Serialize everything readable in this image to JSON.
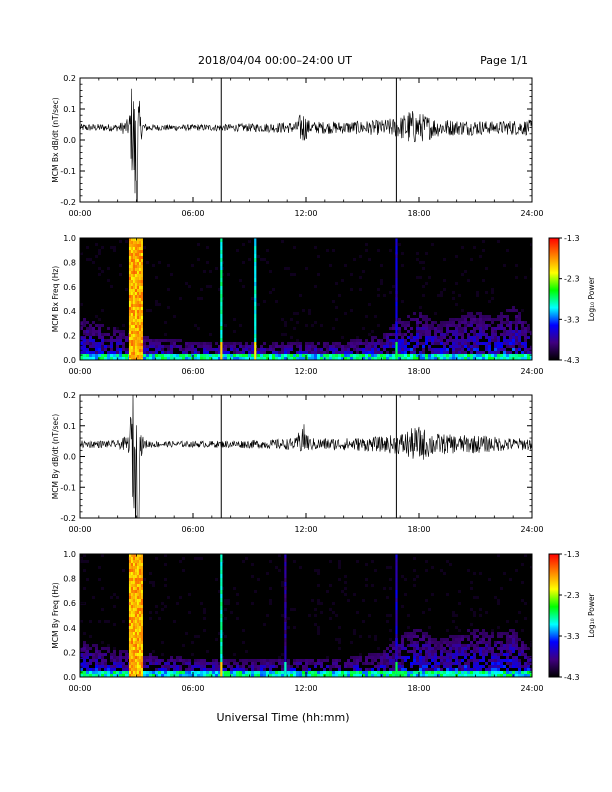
{
  "header": {
    "title": "2018/04/04  00:00–24:00 UT",
    "page": "Page 1/1"
  },
  "xaxis": {
    "label": "Universal Time (hh:mm)",
    "ticks": [
      "00:00",
      "06:00",
      "12:00",
      "18:00",
      "24:00"
    ],
    "range_hours": [
      0,
      24
    ]
  },
  "colorbar": {
    "label": "Log₁₀ Power",
    "ticks": [
      "-1.3",
      "-2.3",
      "-3.3",
      "-4.3"
    ],
    "range": [
      -4.3,
      -1.3
    ],
    "colormap": "rainbow",
    "colors": [
      "#000000",
      "#400080",
      "#0000ff",
      "#00ffff",
      "#00ff00",
      "#ffff00",
      "#ff8000",
      "#ff0000"
    ]
  },
  "chart_data": [
    {
      "type": "line",
      "ylabel": "MCM Bx dB/dt (nT/sec)",
      "ylim": [
        -0.2,
        0.2
      ],
      "yticks": [
        "0.2",
        "0.1",
        "0.0",
        "-0.1",
        "-0.2"
      ],
      "xlim": [
        0,
        24
      ],
      "vertical_markers_hours": [
        7.5,
        16.8
      ],
      "series": [
        {
          "x": [
            0,
            2,
            2.6,
            2.8,
            2.9,
            3.0,
            3.1,
            3.2,
            3.4,
            4,
            6,
            8,
            10,
            11.5,
            11.8,
            12.2,
            14,
            16,
            17,
            17.5,
            18,
            18.5,
            19,
            20,
            21,
            22,
            23,
            24
          ],
          "y_center": [
            0.04,
            0.04,
            0.04,
            0.04,
            -0.05,
            -0.1,
            -0.02,
            0.04,
            0.04,
            0.04,
            0.04,
            0.04,
            0.04,
            0.04,
            0.04,
            0.04,
            0.04,
            0.04,
            0.04,
            0.04,
            0.04,
            0.04,
            0.04,
            0.04,
            0.04,
            0.04,
            0.04,
            0.04
          ],
          "y_amplitude": [
            0.012,
            0.012,
            0.03,
            0.2,
            0.2,
            0.25,
            0.2,
            0.05,
            0.015,
            0.01,
            0.01,
            0.012,
            0.015,
            0.02,
            0.06,
            0.02,
            0.02,
            0.025,
            0.035,
            0.06,
            0.05,
            0.04,
            0.03,
            0.025,
            0.025,
            0.02,
            0.025,
            0.025
          ]
        }
      ]
    },
    {
      "type": "heatmap",
      "ylabel": "MCM Bx Freq (Hz)",
      "ylim": [
        0,
        1
      ],
      "yticks": [
        "1.0",
        "0.8",
        "0.6",
        "0.4",
        "0.2",
        "0.0"
      ],
      "xlim": [
        0,
        24
      ],
      "units": "Log10 Power",
      "broadband_bands": [
        {
          "x_start": 2.6,
          "x_end": 3.3,
          "log_power": -1.9
        }
      ],
      "spikes": [
        {
          "x": 7.5,
          "log_power": -2.9
        },
        {
          "x": 9.3,
          "log_power": -3.0
        },
        {
          "x": 16.8,
          "log_power": -3.6
        }
      ],
      "background_envelope": {
        "x": [
          0,
          1,
          2,
          3,
          4,
          6,
          8,
          10,
          12,
          14,
          16,
          17,
          18,
          19,
          20,
          21,
          22,
          23,
          24
        ],
        "upper_freq": [
          0.35,
          0.3,
          0.25,
          0.2,
          0.18,
          0.15,
          0.15,
          0.15,
          0.15,
          0.15,
          0.2,
          0.35,
          0.4,
          0.3,
          0.35,
          0.4,
          0.35,
          0.45,
          0.25
        ]
      }
    },
    {
      "type": "line",
      "ylabel": "MCM By dB/dt (nT/sec)",
      "ylim": [
        -0.2,
        0.2
      ],
      "yticks": [
        "0.2",
        "0.1",
        "0.0",
        "-0.1",
        "-0.2"
      ],
      "xlim": [
        0,
        24
      ],
      "vertical_markers_hours": [
        7.5,
        16.8
      ],
      "series": [
        {
          "x": [
            0,
            2,
            2.6,
            2.8,
            2.9,
            3.0,
            3.1,
            3.2,
            3.4,
            4,
            6,
            8,
            10,
            11.5,
            11.8,
            12.2,
            14,
            16,
            17,
            17.5,
            18,
            18.5,
            19,
            20,
            21,
            22,
            23,
            24
          ],
          "y_center": [
            0.04,
            0.04,
            0.04,
            0.04,
            -0.02,
            -0.1,
            -0.05,
            0.04,
            0.04,
            0.04,
            0.04,
            0.04,
            0.04,
            0.04,
            0.06,
            0.04,
            0.04,
            0.04,
            0.04,
            0.04,
            0.04,
            0.04,
            0.04,
            0.04,
            0.04,
            0.04,
            0.04,
            0.04
          ],
          "y_amplitude": [
            0.012,
            0.012,
            0.03,
            0.2,
            0.25,
            0.25,
            0.25,
            0.05,
            0.015,
            0.01,
            0.01,
            0.012,
            0.015,
            0.02,
            0.06,
            0.02,
            0.02,
            0.025,
            0.035,
            0.05,
            0.06,
            0.045,
            0.035,
            0.03,
            0.03,
            0.025,
            0.02,
            0.02
          ]
        }
      ]
    },
    {
      "type": "heatmap",
      "ylabel": "MCM By Freq (Hz)",
      "ylim": [
        0,
        1
      ],
      "yticks": [
        "1.0",
        "0.8",
        "0.6",
        "0.4",
        "0.2",
        "0.0"
      ],
      "xlim": [
        0,
        24
      ],
      "units": "Log10 Power",
      "broadband_bands": [
        {
          "x_start": 2.6,
          "x_end": 3.3,
          "log_power": -1.9
        }
      ],
      "spikes": [
        {
          "x": 7.5,
          "log_power": -2.9
        },
        {
          "x": 10.9,
          "log_power": -3.8
        },
        {
          "x": 16.8,
          "log_power": -3.6
        }
      ],
      "background_envelope": {
        "x": [
          0,
          1,
          2,
          3,
          4,
          6,
          8,
          10,
          12,
          14,
          16,
          17,
          18,
          19,
          20,
          21,
          22,
          23,
          24
        ],
        "upper_freq": [
          0.3,
          0.25,
          0.22,
          0.2,
          0.18,
          0.15,
          0.15,
          0.15,
          0.15,
          0.15,
          0.2,
          0.35,
          0.4,
          0.3,
          0.35,
          0.4,
          0.35,
          0.4,
          0.2
        ]
      }
    }
  ]
}
